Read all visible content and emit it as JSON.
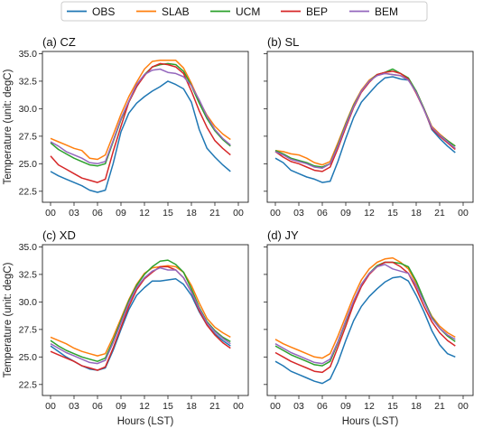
{
  "legend": {
    "items": [
      {
        "label": "OBS",
        "color": "#1f77b4"
      },
      {
        "label": "SLAB",
        "color": "#ff7f0e"
      },
      {
        "label": "UCM",
        "color": "#2ca02c"
      },
      {
        "label": "BEP",
        "color": "#d62728"
      },
      {
        "label": "BEM",
        "color": "#9467bd"
      }
    ]
  },
  "chart_data": [
    {
      "type": "line",
      "title": "(a) CZ",
      "xlabel": "",
      "ylabel": "Temperature (unit: degC)",
      "x": [
        0,
        1,
        2,
        3,
        4,
        5,
        6,
        7,
        8,
        9,
        10,
        11,
        12,
        13,
        14,
        15,
        16,
        17,
        18,
        19,
        20,
        21,
        22,
        23
      ],
      "xticks": [
        "00",
        "03",
        "06",
        "09",
        "12",
        "15",
        "18",
        "21",
        "00"
      ],
      "ylim": [
        21.5,
        35.2
      ],
      "yticks": [
        "22.5",
        "25.0",
        "27.5",
        "30.0",
        "32.5",
        "35.0"
      ],
      "series": [
        {
          "name": "OBS",
          "values": [
            24.3,
            23.9,
            23.6,
            23.3,
            23.0,
            22.6,
            22.4,
            22.6,
            25.0,
            27.9,
            29.6,
            30.5,
            31.1,
            31.6,
            32.0,
            32.5,
            32.2,
            31.8,
            30.6,
            28.1,
            26.4,
            25.6,
            24.9,
            24.3
          ]
        },
        {
          "name": "SLAB",
          "values": [
            27.3,
            27.0,
            26.7,
            26.4,
            26.2,
            25.5,
            25.4,
            25.8,
            27.6,
            29.5,
            31.1,
            32.4,
            33.6,
            34.3,
            34.4,
            34.4,
            34.4,
            33.7,
            32.3,
            30.7,
            29.4,
            28.4,
            27.7,
            27.2
          ]
        },
        {
          "name": "UCM",
          "values": [
            26.9,
            26.3,
            25.9,
            25.5,
            25.2,
            24.9,
            24.8,
            25.0,
            27.0,
            29.0,
            30.6,
            32.0,
            33.1,
            33.8,
            34.0,
            34.1,
            34.0,
            33.4,
            32.1,
            30.5,
            29.1,
            28.0,
            27.2,
            26.6
          ]
        },
        {
          "name": "BEP",
          "values": [
            25.7,
            24.9,
            24.5,
            24.1,
            23.7,
            23.5,
            23.3,
            23.6,
            26.1,
            28.4,
            30.6,
            32.0,
            33.0,
            33.8,
            34.1,
            34.0,
            33.8,
            33.2,
            31.6,
            29.8,
            28.3,
            27.1,
            26.4,
            25.8
          ]
        },
        {
          "name": "BEM",
          "values": [
            27.0,
            26.6,
            26.1,
            25.8,
            25.5,
            25.1,
            25.0,
            25.2,
            27.1,
            29.1,
            30.7,
            32.2,
            33.1,
            33.5,
            33.6,
            33.3,
            33.2,
            32.9,
            32.1,
            30.8,
            29.3,
            28.1,
            27.3,
            26.7
          ]
        }
      ]
    },
    {
      "type": "line",
      "title": "(b) SL",
      "xlabel": "",
      "ylabel": "",
      "x": [
        0,
        1,
        2,
        3,
        4,
        5,
        6,
        7,
        8,
        9,
        10,
        11,
        12,
        13,
        14,
        15,
        16,
        17,
        18,
        19,
        20,
        21,
        22,
        23
      ],
      "xticks": [
        "00",
        "03",
        "06",
        "09",
        "12",
        "15",
        "18",
        "21",
        "00"
      ],
      "ylim": [
        21.5,
        35.2
      ],
      "yticks": [],
      "series": [
        {
          "name": "OBS",
          "values": [
            25.5,
            25.1,
            24.4,
            24.1,
            23.8,
            23.6,
            23.3,
            23.4,
            25.2,
            27.3,
            29.2,
            30.6,
            31.4,
            32.2,
            32.8,
            32.9,
            32.7,
            32.6,
            31.6,
            30.0,
            28.1,
            27.3,
            26.6,
            26.0
          ]
        },
        {
          "name": "SLAB",
          "values": [
            26.2,
            26.1,
            25.9,
            25.8,
            25.5,
            25.1,
            24.9,
            25.2,
            26.9,
            28.7,
            30.4,
            31.7,
            32.6,
            33.1,
            33.2,
            33.1,
            33.0,
            32.6,
            31.6,
            30.0,
            28.4,
            27.7,
            27.1,
            26.6
          ]
        },
        {
          "name": "UCM",
          "values": [
            26.2,
            25.9,
            25.5,
            25.3,
            25.1,
            24.8,
            24.7,
            25.0,
            26.7,
            28.6,
            30.3,
            31.6,
            32.5,
            33.1,
            33.3,
            33.6,
            33.2,
            32.8,
            31.6,
            30.0,
            28.3,
            27.6,
            27.1,
            26.6
          ]
        },
        {
          "name": "BEP",
          "values": [
            26.1,
            25.6,
            25.2,
            25.0,
            24.7,
            24.4,
            24.3,
            24.7,
            26.4,
            28.3,
            30.1,
            31.5,
            32.4,
            33.1,
            33.3,
            33.4,
            33.2,
            32.7,
            31.4,
            29.9,
            28.2,
            27.5,
            26.9,
            26.3
          ]
        },
        {
          "name": "BEM",
          "values": [
            26.1,
            25.8,
            25.4,
            25.2,
            25.0,
            24.7,
            24.6,
            25.0,
            26.6,
            28.5,
            30.2,
            31.6,
            32.5,
            33.0,
            33.2,
            33.1,
            33.0,
            32.6,
            31.5,
            29.9,
            28.3,
            27.6,
            27.0,
            26.4
          ]
        }
      ]
    },
    {
      "type": "line",
      "title": "(c) XD",
      "xlabel": "Hours (LST)",
      "ylabel": "Temperature (unit: degC)",
      "x": [
        0,
        1,
        2,
        3,
        4,
        5,
        6,
        7,
        8,
        9,
        10,
        11,
        12,
        13,
        14,
        15,
        16,
        17,
        18,
        19,
        20,
        21,
        22,
        23
      ],
      "xticks": [
        "00",
        "03",
        "06",
        "09",
        "12",
        "15",
        "18",
        "21",
        "00"
      ],
      "ylim": [
        21.5,
        35.2
      ],
      "yticks": [
        "22.5",
        "25.0",
        "27.5",
        "30.0",
        "32.5",
        "35.0"
      ],
      "series": [
        {
          "name": "OBS",
          "values": [
            26.0,
            25.5,
            25.0,
            24.6,
            24.2,
            23.9,
            23.8,
            24.0,
            25.6,
            27.5,
            29.3,
            30.6,
            31.3,
            31.9,
            31.9,
            32.0,
            32.1,
            31.6,
            30.6,
            29.1,
            27.9,
            27.1,
            26.5,
            26.0
          ]
        },
        {
          "name": "SLAB",
          "values": [
            26.8,
            26.5,
            26.2,
            25.8,
            25.5,
            25.3,
            25.1,
            25.3,
            26.8,
            28.5,
            30.2,
            31.6,
            32.6,
            33.1,
            33.2,
            33.3,
            33.2,
            32.7,
            31.5,
            29.9,
            28.5,
            27.7,
            27.2,
            26.8
          ]
        },
        {
          "name": "UCM",
          "values": [
            26.5,
            26.0,
            25.6,
            25.3,
            25.0,
            24.8,
            24.6,
            24.9,
            26.5,
            28.3,
            30.1,
            31.5,
            32.5,
            33.2,
            33.7,
            33.8,
            33.4,
            32.7,
            31.2,
            29.5,
            28.2,
            27.4,
            26.8,
            26.4
          ]
        },
        {
          "name": "BEP",
          "values": [
            25.5,
            25.2,
            24.9,
            24.6,
            24.2,
            24.0,
            23.8,
            24.1,
            25.8,
            27.7,
            29.6,
            31.1,
            32.1,
            32.7,
            33.2,
            33.2,
            32.9,
            32.2,
            30.9,
            29.2,
            27.9,
            27.0,
            26.3,
            25.8
          ]
        },
        {
          "name": "BEM",
          "values": [
            26.2,
            25.8,
            25.4,
            25.1,
            24.8,
            24.5,
            24.4,
            24.7,
            26.3,
            28.1,
            29.9,
            31.3,
            32.2,
            32.8,
            33.1,
            32.9,
            32.9,
            32.2,
            30.9,
            29.4,
            28.1,
            27.3,
            26.7,
            26.2
          ]
        }
      ]
    },
    {
      "type": "line",
      "title": "(d) JY",
      "xlabel": "Hours (LST)",
      "ylabel": "",
      "x": [
        0,
        1,
        2,
        3,
        4,
        5,
        6,
        7,
        8,
        9,
        10,
        11,
        12,
        13,
        14,
        15,
        16,
        17,
        18,
        19,
        20,
        21,
        22,
        23
      ],
      "xticks": [
        "00",
        "03",
        "06",
        "09",
        "12",
        "15",
        "18",
        "21",
        "00"
      ],
      "ylim": [
        21.5,
        35.2
      ],
      "yticks": [],
      "series": [
        {
          "name": "OBS",
          "values": [
            24.6,
            24.2,
            23.7,
            23.4,
            23.1,
            22.8,
            22.6,
            23.0,
            24.5,
            26.5,
            28.3,
            29.6,
            30.5,
            31.2,
            31.8,
            32.2,
            32.3,
            31.9,
            30.6,
            29.1,
            27.4,
            26.1,
            25.3,
            25.0
          ]
        },
        {
          "name": "SLAB",
          "values": [
            26.6,
            26.2,
            25.9,
            25.6,
            25.3,
            25.0,
            24.9,
            25.3,
            26.9,
            28.7,
            30.5,
            32.0,
            33.0,
            33.6,
            33.9,
            34.0,
            33.6,
            33.0,
            31.7,
            30.1,
            28.7,
            27.8,
            27.2,
            26.8
          ]
        },
        {
          "name": "UCM",
          "values": [
            26.0,
            25.6,
            25.2,
            24.9,
            24.6,
            24.3,
            24.2,
            24.6,
            26.3,
            28.2,
            30.0,
            31.6,
            32.6,
            33.3,
            33.6,
            33.6,
            33.5,
            33.2,
            31.9,
            30.2,
            28.6,
            27.6,
            26.9,
            26.4
          ]
        },
        {
          "name": "BEP",
          "values": [
            25.4,
            25.0,
            24.6,
            24.3,
            24.0,
            23.7,
            23.6,
            24.1,
            25.9,
            27.8,
            29.8,
            31.4,
            32.5,
            33.2,
            33.6,
            33.6,
            33.2,
            32.6,
            31.2,
            29.6,
            28.2,
            27.2,
            26.5,
            26.0
          ]
        },
        {
          "name": "BEM",
          "values": [
            26.2,
            25.8,
            25.4,
            25.1,
            24.8,
            24.5,
            24.4,
            24.8,
            26.4,
            28.3,
            30.1,
            31.6,
            32.6,
            33.2,
            33.4,
            33.0,
            32.8,
            32.6,
            31.5,
            30.0,
            28.5,
            27.6,
            27.0,
            26.6
          ]
        }
      ]
    }
  ]
}
